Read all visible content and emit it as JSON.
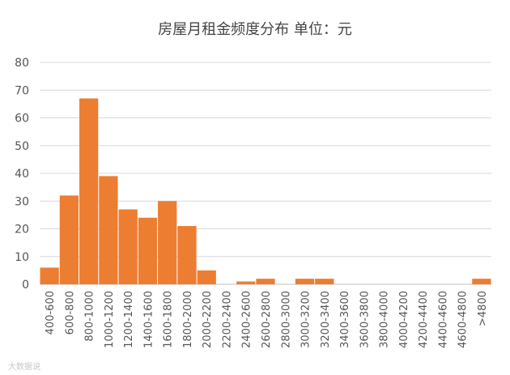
{
  "chart_data": {
    "type": "bar",
    "title": "房屋月租金频度分布 单位：元",
    "categories": [
      "400-600",
      "600-800",
      "800-1000",
      "1000-1200",
      "1200-1400",
      "1400-1600",
      "1600-1800",
      "1800-2000",
      "2000-2200",
      "2200-2400",
      "2400-2600",
      "2600-2800",
      "2800-3000",
      "3000-3200",
      "3200-3400",
      "3400-3600",
      "3600-3800",
      "3800-4000",
      "4000-4200",
      "4200-4400",
      "4400-4600",
      "4600-4800",
      ">4800"
    ],
    "values": [
      6,
      32,
      67,
      39,
      27,
      24,
      30,
      21,
      5,
      0,
      1,
      2,
      0,
      2,
      2,
      0,
      0,
      0,
      0,
      0,
      0,
      0,
      2
    ],
    "ylim": [
      0,
      80
    ],
    "yticks": [
      0,
      10,
      20,
      30,
      40,
      50,
      60,
      70,
      80
    ],
    "grid": true,
    "bar_color": "#ED7D31"
  },
  "watermark": "大数据说"
}
